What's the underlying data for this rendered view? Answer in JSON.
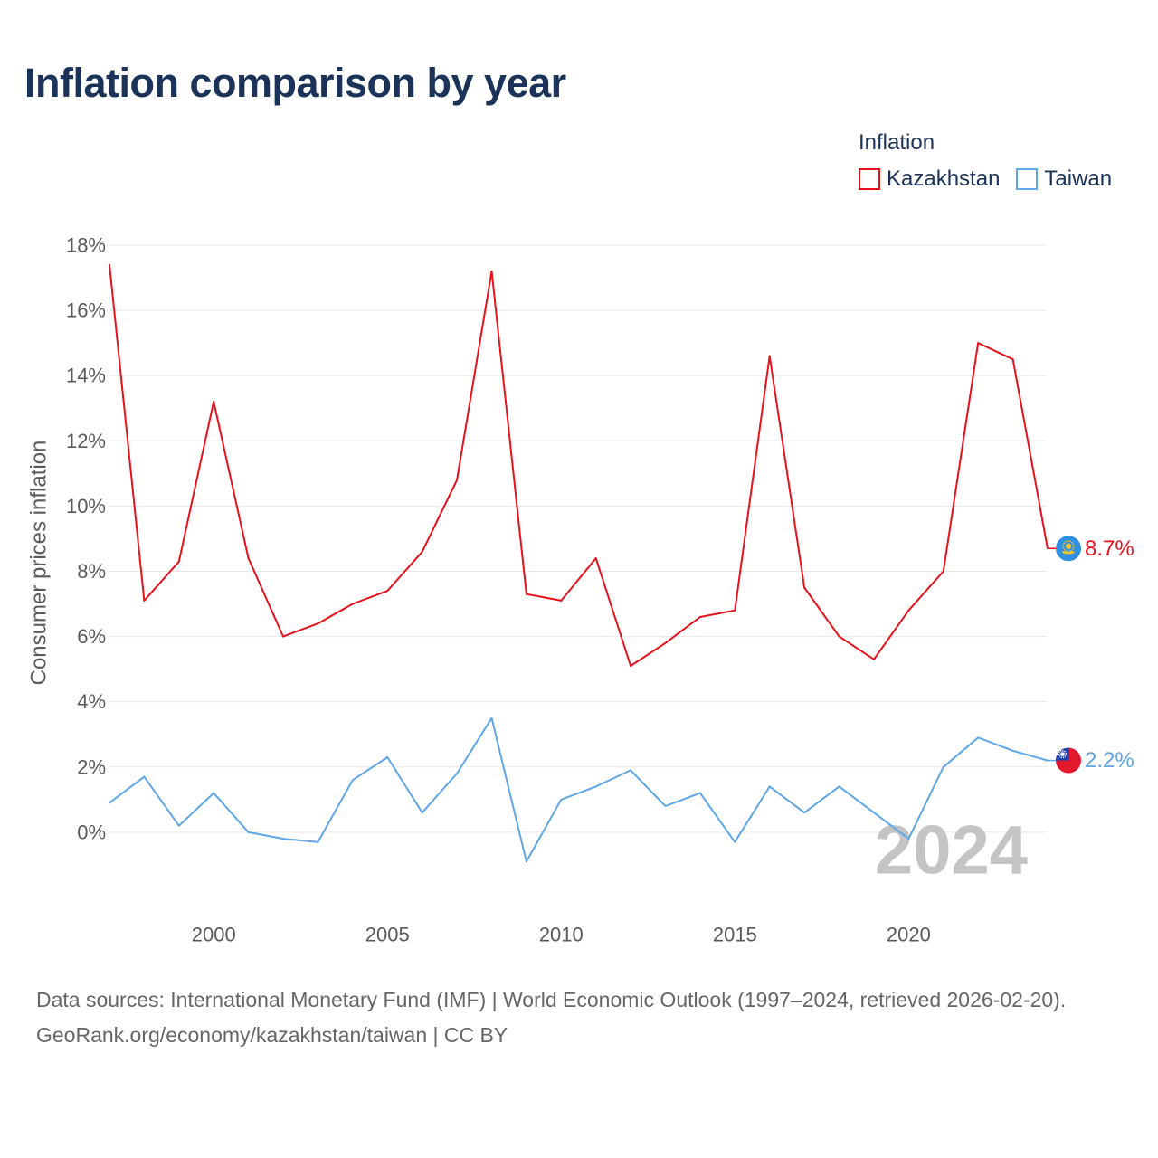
{
  "chart_data": {
    "type": "line",
    "title": "Inflation comparison by year",
    "ylabel": "Consumer prices inflation",
    "legend": {
      "title": "Inflation",
      "position": "top-right"
    },
    "x": [
      1997,
      1998,
      1999,
      2000,
      2001,
      2002,
      2003,
      2004,
      2005,
      2006,
      2007,
      2008,
      2009,
      2010,
      2011,
      2012,
      2013,
      2014,
      2015,
      2016,
      2017,
      2018,
      2019,
      2020,
      2021,
      2022,
      2023,
      2024
    ],
    "xlim": [
      1997,
      2024
    ],
    "ylim": [
      -2.5,
      18
    ],
    "grid": true,
    "xticks": [
      {
        "value": 2000,
        "label": "2000"
      },
      {
        "value": 2005,
        "label": "2005"
      },
      {
        "value": 2010,
        "label": "2010"
      },
      {
        "value": 2015,
        "label": "2015"
      },
      {
        "value": 2020,
        "label": "2020"
      }
    ],
    "yticks": [
      {
        "value": 0,
        "label": "0%"
      },
      {
        "value": 2,
        "label": "2%"
      },
      {
        "value": 4,
        "label": "4%"
      },
      {
        "value": 6,
        "label": "6%"
      },
      {
        "value": 8,
        "label": "8%"
      },
      {
        "value": 10,
        "label": "10%"
      },
      {
        "value": 12,
        "label": "12%"
      },
      {
        "value": 14,
        "label": "14%"
      },
      {
        "value": 16,
        "label": "16%"
      },
      {
        "value": 18,
        "label": "18%"
      }
    ],
    "series": [
      {
        "name": "Kazakhstan",
        "color": "#e8111b",
        "flag_icon": "kazakhstan-flag-icon",
        "end_label": "8.7%",
        "values": [
          17.4,
          7.1,
          8.3,
          13.2,
          8.4,
          6.0,
          6.4,
          7.0,
          7.4,
          8.6,
          10.8,
          17.2,
          7.3,
          7.1,
          8.4,
          5.1,
          5.8,
          6.6,
          6.8,
          14.6,
          7.5,
          6.0,
          5.3,
          6.8,
          8.0,
          15.0,
          14.5,
          8.7
        ]
      },
      {
        "name": "Taiwan",
        "color": "#5ea6e6",
        "flag_icon": "taiwan-flag-icon",
        "end_label": "2.2%",
        "values": [
          0.9,
          1.7,
          0.2,
          1.2,
          0.0,
          -0.2,
          -0.3,
          1.6,
          2.3,
          0.6,
          1.8,
          3.5,
          -0.9,
          1.0,
          1.4,
          1.9,
          0.8,
          1.2,
          -0.3,
          1.4,
          0.6,
          1.4,
          0.6,
          -0.2,
          2.0,
          2.9,
          2.5,
          2.2
        ]
      }
    ],
    "watermark_year": "2024"
  },
  "footer": {
    "source": "Data sources: International Monetary Fund (IMF) | World Economic Outlook (1997–2024, retrieved 2026-02-20).",
    "credit": "GeoRank.org/economy/kazakhstan/taiwan | CC BY"
  }
}
